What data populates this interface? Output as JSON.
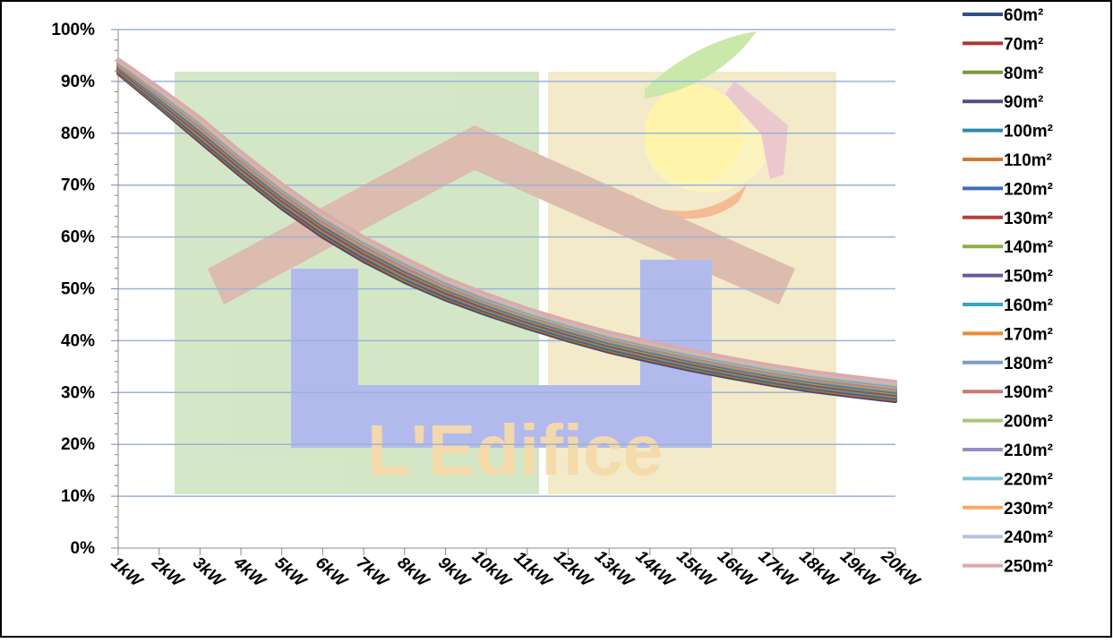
{
  "chart_data": {
    "type": "line",
    "categories": [
      "1kW",
      "2kW",
      "3kW",
      "4kW",
      "5kW",
      "6kW",
      "7kW",
      "8kW",
      "9kW",
      "10kW",
      "11kW",
      "12kW",
      "13kW",
      "14kW",
      "15kW",
      "16kW",
      "17kW",
      "18kW",
      "19kW",
      "20kW"
    ],
    "y_ticks": [
      "0%",
      "10%",
      "20%",
      "30%",
      "40%",
      "50%",
      "60%",
      "70%",
      "80%",
      "90%",
      "100%"
    ],
    "ylim": [
      0,
      1
    ],
    "grid": true,
    "legend_position": "right",
    "watermark_text": "L'Edifice",
    "series": [
      {
        "name": "60m²",
        "color": "#2f4f8a",
        "values": [
          0.915,
          0.85,
          0.783,
          0.717,
          0.655,
          0.6,
          0.553,
          0.513,
          0.479,
          0.45,
          0.424,
          0.4,
          0.378,
          0.36,
          0.343,
          0.328,
          0.314,
          0.302,
          0.292,
          0.283
        ]
      },
      {
        "name": "70m²",
        "color": "#a83a36",
        "values": [
          0.916,
          0.852,
          0.785,
          0.719,
          0.657,
          0.602,
          0.555,
          0.515,
          0.481,
          0.452,
          0.426,
          0.402,
          0.38,
          0.362,
          0.345,
          0.33,
          0.316,
          0.304,
          0.294,
          0.285
        ]
      },
      {
        "name": "80m²",
        "color": "#7a9a3a",
        "values": [
          0.918,
          0.854,
          0.788,
          0.722,
          0.66,
          0.605,
          0.558,
          0.517,
          0.483,
          0.454,
          0.428,
          0.404,
          0.382,
          0.364,
          0.347,
          0.332,
          0.318,
          0.306,
          0.296,
          0.287
        ]
      },
      {
        "name": "90m²",
        "color": "#5a4a82",
        "values": [
          0.919,
          0.856,
          0.79,
          0.724,
          0.662,
          0.607,
          0.56,
          0.52,
          0.485,
          0.456,
          0.43,
          0.406,
          0.384,
          0.366,
          0.349,
          0.334,
          0.32,
          0.308,
          0.298,
          0.289
        ]
      },
      {
        "name": "100m²",
        "color": "#2e8aa6",
        "values": [
          0.921,
          0.858,
          0.793,
          0.727,
          0.665,
          0.61,
          0.563,
          0.522,
          0.488,
          0.458,
          0.432,
          0.408,
          0.386,
          0.368,
          0.351,
          0.336,
          0.322,
          0.31,
          0.3,
          0.291
        ]
      },
      {
        "name": "110m²",
        "color": "#d4782a",
        "values": [
          0.922,
          0.86,
          0.795,
          0.729,
          0.667,
          0.612,
          0.565,
          0.524,
          0.49,
          0.46,
          0.434,
          0.41,
          0.388,
          0.37,
          0.353,
          0.338,
          0.324,
          0.312,
          0.302,
          0.293
        ]
      },
      {
        "name": "120m²",
        "color": "#3f6fb4",
        "values": [
          0.924,
          0.862,
          0.798,
          0.732,
          0.67,
          0.615,
          0.568,
          0.527,
          0.492,
          0.462,
          0.436,
          0.412,
          0.39,
          0.372,
          0.355,
          0.34,
          0.326,
          0.314,
          0.304,
          0.295
        ]
      },
      {
        "name": "130m²",
        "color": "#b2403c",
        "values": [
          0.925,
          0.864,
          0.8,
          0.734,
          0.672,
          0.617,
          0.57,
          0.529,
          0.494,
          0.464,
          0.438,
          0.414,
          0.392,
          0.374,
          0.357,
          0.342,
          0.328,
          0.316,
          0.306,
          0.297
        ]
      },
      {
        "name": "140m²",
        "color": "#8bb343",
        "values": [
          0.927,
          0.866,
          0.803,
          0.737,
          0.675,
          0.62,
          0.573,
          0.532,
          0.497,
          0.467,
          0.44,
          0.416,
          0.394,
          0.376,
          0.359,
          0.344,
          0.33,
          0.318,
          0.308,
          0.299
        ]
      },
      {
        "name": "150m²",
        "color": "#6a58a0",
        "values": [
          0.928,
          0.868,
          0.805,
          0.739,
          0.677,
          0.622,
          0.575,
          0.534,
          0.499,
          0.469,
          0.442,
          0.418,
          0.396,
          0.378,
          0.361,
          0.346,
          0.332,
          0.32,
          0.31,
          0.301
        ]
      },
      {
        "name": "160m²",
        "color": "#38a4c0",
        "values": [
          0.93,
          0.87,
          0.808,
          0.742,
          0.68,
          0.625,
          0.578,
          0.537,
          0.501,
          0.471,
          0.444,
          0.42,
          0.398,
          0.38,
          0.363,
          0.348,
          0.334,
          0.322,
          0.312,
          0.303
        ]
      },
      {
        "name": "170m²",
        "color": "#f08a30",
        "values": [
          0.931,
          0.872,
          0.81,
          0.744,
          0.682,
          0.627,
          0.58,
          0.539,
          0.503,
          0.473,
          0.446,
          0.422,
          0.4,
          0.382,
          0.365,
          0.35,
          0.336,
          0.324,
          0.314,
          0.305
        ]
      },
      {
        "name": "180m²",
        "color": "#7d9cc8",
        "values": [
          0.933,
          0.874,
          0.813,
          0.747,
          0.685,
          0.63,
          0.583,
          0.542,
          0.506,
          0.475,
          0.448,
          0.424,
          0.402,
          0.384,
          0.367,
          0.352,
          0.338,
          0.326,
          0.316,
          0.307
        ]
      },
      {
        "name": "190m²",
        "color": "#c87872",
        "values": [
          0.934,
          0.876,
          0.815,
          0.749,
          0.687,
          0.632,
          0.585,
          0.544,
          0.508,
          0.477,
          0.45,
          0.426,
          0.404,
          0.386,
          0.369,
          0.354,
          0.34,
          0.328,
          0.318,
          0.309
        ]
      },
      {
        "name": "200m²",
        "color": "#a8c87a",
        "values": [
          0.936,
          0.878,
          0.818,
          0.752,
          0.69,
          0.635,
          0.588,
          0.547,
          0.51,
          0.479,
          0.452,
          0.428,
          0.406,
          0.388,
          0.371,
          0.356,
          0.342,
          0.33,
          0.32,
          0.311
        ]
      },
      {
        "name": "210m²",
        "color": "#9a8cc0",
        "values": [
          0.937,
          0.88,
          0.82,
          0.754,
          0.692,
          0.637,
          0.59,
          0.549,
          0.512,
          0.481,
          0.454,
          0.43,
          0.408,
          0.39,
          0.373,
          0.358,
          0.344,
          0.332,
          0.322,
          0.313
        ]
      },
      {
        "name": "220m²",
        "color": "#7ec4d8",
        "values": [
          0.939,
          0.882,
          0.823,
          0.757,
          0.695,
          0.64,
          0.593,
          0.552,
          0.515,
          0.484,
          0.456,
          0.432,
          0.41,
          0.392,
          0.375,
          0.36,
          0.346,
          0.334,
          0.324,
          0.315
        ]
      },
      {
        "name": "230m²",
        "color": "#f8aa6a",
        "values": [
          0.94,
          0.884,
          0.825,
          0.759,
          0.697,
          0.642,
          0.595,
          0.554,
          0.517,
          0.486,
          0.458,
          0.434,
          0.412,
          0.394,
          0.377,
          0.362,
          0.348,
          0.336,
          0.326,
          0.317
        ]
      },
      {
        "name": "240m²",
        "color": "#b4c4e0",
        "values": [
          0.942,
          0.886,
          0.828,
          0.762,
          0.7,
          0.645,
          0.598,
          0.557,
          0.519,
          0.488,
          0.46,
          0.436,
          0.414,
          0.396,
          0.379,
          0.364,
          0.35,
          0.338,
          0.328,
          0.319
        ]
      },
      {
        "name": "250m²",
        "color": "#dcaaa8",
        "values": [
          0.943,
          0.888,
          0.83,
          0.764,
          0.702,
          0.647,
          0.6,
          0.559,
          0.521,
          0.49,
          0.462,
          0.438,
          0.416,
          0.398,
          0.381,
          0.366,
          0.352,
          0.34,
          0.33,
          0.321
        ]
      }
    ]
  }
}
